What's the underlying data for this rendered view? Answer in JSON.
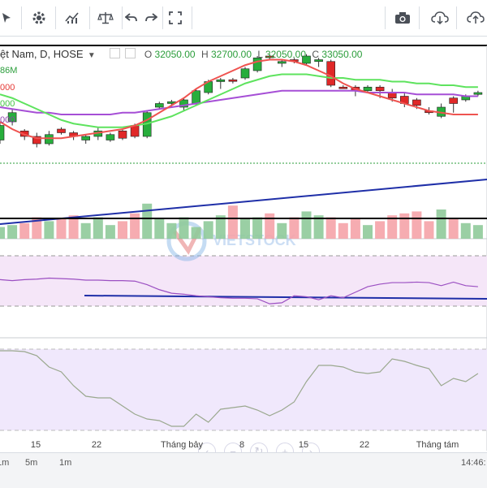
{
  "toolbar": {
    "left_icons": [
      "cursor-icon",
      "gear-icon",
      "indicators-icon",
      "balance-icon",
      "undo-icon",
      "redo-icon",
      "fullscreen-icon"
    ],
    "right_icons": [
      "camera-icon",
      "cloud-download-icon",
      "cloud-upload-icon"
    ]
  },
  "legend": {
    "symbol": "ệt Nam, D, HOSE",
    "open_label": "O",
    "open": "32050.00",
    "high_label": "H",
    "high": "32700.00",
    "low_label": "L",
    "low": "32050.00",
    "close_label": "C",
    "close": "33050.00"
  },
  "ma_labels": [
    {
      "text": "86M",
      "color": "#2a9d3a"
    },
    {
      "text": "000",
      "color": "#e53935"
    },
    {
      "text": "000",
      "color": "#43c443"
    },
    {
      "text": "000",
      "color": "#8e44ad"
    }
  ],
  "watermark": "VIETSTOCK",
  "x_axis": [
    "15",
    "22",
    "Tháng bảy",
    "8",
    "15",
    "22",
    "Tháng tám"
  ],
  "timeframes": [
    "1m",
    "5m",
    "1m"
  ],
  "clock": "14:46:",
  "chart_data": {
    "type": "candlestick",
    "candles": [
      [
        0.5,
        0.42,
        0.4,
        0.52
      ],
      [
        0.4,
        0.35,
        0.33,
        0.42
      ],
      [
        0.45,
        0.48,
        0.44,
        0.5
      ],
      [
        0.48,
        0.52,
        0.46,
        0.54
      ],
      [
        0.52,
        0.47,
        0.45,
        0.53
      ],
      [
        0.44,
        0.46,
        0.43,
        0.47
      ],
      [
        0.46,
        0.48,
        0.45,
        0.5
      ],
      [
        0.5,
        0.48,
        0.47,
        0.52
      ],
      [
        0.48,
        0.45,
        0.43,
        0.5
      ],
      [
        0.5,
        0.47,
        0.46,
        0.51
      ],
      [
        0.45,
        0.49,
        0.44,
        0.5
      ],
      [
        0.42,
        0.48,
        0.41,
        0.49
      ],
      [
        0.48,
        0.35,
        0.34,
        0.49
      ],
      [
        0.32,
        0.3,
        0.29,
        0.33
      ],
      [
        0.3,
        0.29,
        0.28,
        0.32
      ],
      [
        0.32,
        0.28,
        0.27,
        0.34
      ],
      [
        0.3,
        0.23,
        0.22,
        0.31
      ],
      [
        0.24,
        0.18,
        0.17,
        0.25
      ],
      [
        0.18,
        0.17,
        0.16,
        0.22
      ],
      [
        0.17,
        0.17,
        0.16,
        0.19
      ],
      [
        0.16,
        0.11,
        0.1,
        0.17
      ],
      [
        0.12,
        0.05,
        0.04,
        0.13
      ],
      [
        0.04,
        0.04,
        0.03,
        0.06
      ],
      [
        0.08,
        0.07,
        0.06,
        0.1
      ],
      [
        0.06,
        0.06,
        0.05,
        0.08
      ],
      [
        0.08,
        0.04,
        0.03,
        0.09
      ],
      [
        0.07,
        0.06,
        0.05,
        0.1
      ],
      [
        0.07,
        0.2,
        0.06,
        0.21
      ],
      [
        0.21,
        0.21,
        0.2,
        0.22
      ],
      [
        0.21,
        0.23,
        0.2,
        0.26
      ],
      [
        0.23,
        0.21,
        0.2,
        0.24
      ],
      [
        0.21,
        0.23,
        0.2,
        0.27
      ],
      [
        0.24,
        0.27,
        0.22,
        0.29
      ],
      [
        0.26,
        0.3,
        0.24,
        0.32
      ],
      [
        0.28,
        0.31,
        0.27,
        0.33
      ],
      [
        0.34,
        0.35,
        0.32,
        0.36
      ],
      [
        0.37,
        0.32,
        0.3,
        0.38
      ],
      [
        0.27,
        0.3,
        0.26,
        0.35
      ],
      [
        0.28,
        0.26,
        0.25,
        0.29
      ],
      [
        0.25,
        0.24,
        0.23,
        0.26
      ]
    ],
    "ma_fast": [
      0.4,
      0.44,
      0.47,
      0.49,
      0.49,
      0.49,
      0.48,
      0.47,
      0.46,
      0.45,
      0.44,
      0.42,
      0.39,
      0.35,
      0.31,
      0.27,
      0.22,
      0.18,
      0.15,
      0.12,
      0.09,
      0.07,
      0.06,
      0.06,
      0.07,
      0.09,
      0.12,
      0.15,
      0.19,
      0.22,
      0.24,
      0.26,
      0.28,
      0.3,
      0.32,
      0.34,
      0.35,
      0.36,
      0.36,
      0.36
    ],
    "ma_mid": [
      0.25,
      0.27,
      0.3,
      0.33,
      0.36,
      0.39,
      0.41,
      0.42,
      0.43,
      0.43,
      0.43,
      0.42,
      0.41,
      0.39,
      0.37,
      0.34,
      0.31,
      0.28,
      0.25,
      0.22,
      0.19,
      0.17,
      0.15,
      0.14,
      0.14,
      0.14,
      0.15,
      0.16,
      0.16,
      0.17,
      0.17,
      0.17,
      0.18,
      0.18,
      0.19,
      0.19,
      0.2,
      0.2,
      0.21,
      0.21
    ],
    "ma_slow": [
      0.32,
      0.33,
      0.34,
      0.35,
      0.35,
      0.36,
      0.36,
      0.36,
      0.36,
      0.36,
      0.35,
      0.35,
      0.34,
      0.33,
      0.32,
      0.31,
      0.3,
      0.29,
      0.28,
      0.27,
      0.26,
      0.25,
      0.24,
      0.23,
      0.23,
      0.23,
      0.23,
      0.23,
      0.23,
      0.23,
      0.24,
      0.24,
      0.24,
      0.24,
      0.25,
      0.25,
      0.25,
      0.25,
      0.26,
      0.26
    ],
    "volume": [
      0.3,
      0.35,
      0.4,
      0.55,
      0.45,
      0.5,
      0.6,
      0.4,
      0.55,
      0.35,
      0.45,
      0.65,
      0.9,
      0.5,
      0.4,
      0.55,
      0.3,
      0.45,
      0.6,
      0.85,
      0.5,
      0.55,
      0.65,
      0.4,
      0.55,
      0.7,
      0.6,
      0.55,
      0.4,
      0.5,
      0.35,
      0.45,
      0.6,
      0.65,
      0.7,
      0.45,
      0.75,
      0.5,
      0.4,
      0.35
    ],
    "rsi": [
      0.72,
      0.7,
      0.72,
      0.73,
      0.75,
      0.74,
      0.73,
      0.71,
      0.71,
      0.7,
      0.7,
      0.69,
      0.62,
      0.52,
      0.45,
      0.43,
      0.4,
      0.38,
      0.36,
      0.35,
      0.35,
      0.34,
      0.24,
      0.26,
      0.4,
      0.38,
      0.32,
      0.4,
      0.36,
      0.47,
      0.58,
      0.63,
      0.66,
      0.66,
      0.67,
      0.66,
      0.6,
      0.67,
      0.6,
      0.58
    ],
    "stoch": [
      0.98,
      0.98,
      0.97,
      0.92,
      0.78,
      0.72,
      0.55,
      0.42,
      0.4,
      0.4,
      0.3,
      0.2,
      0.14,
      0.12,
      0.05,
      0.05,
      0.2,
      0.1,
      0.26,
      0.28,
      0.3,
      0.25,
      0.18,
      0.25,
      0.35,
      0.6,
      0.8,
      0.8,
      0.78,
      0.72,
      0.7,
      0.72,
      0.88,
      0.85,
      0.8,
      0.76,
      0.55,
      0.64,
      0.6,
      0.7
    ]
  }
}
